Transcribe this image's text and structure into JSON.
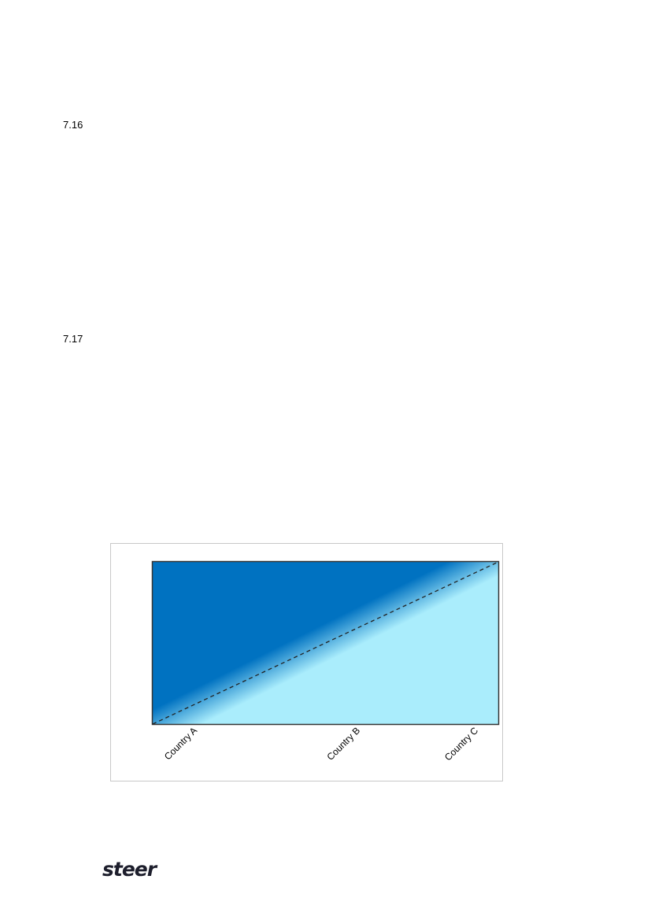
{
  "paragraphs": [
    {
      "number": "7.16"
    },
    {
      "number": "7.17"
    }
  ],
  "chart_data": {
    "type": "area",
    "categories": [
      "Country A",
      "Country B",
      "Country C"
    ],
    "title": "",
    "xlabel": "",
    "ylabel": "",
    "grid": false,
    "colors": {
      "upper": "#0072C1",
      "lower": "#AAEDFC",
      "dashed_line": "#222222"
    }
  },
  "footer": {
    "logo": "steer"
  }
}
